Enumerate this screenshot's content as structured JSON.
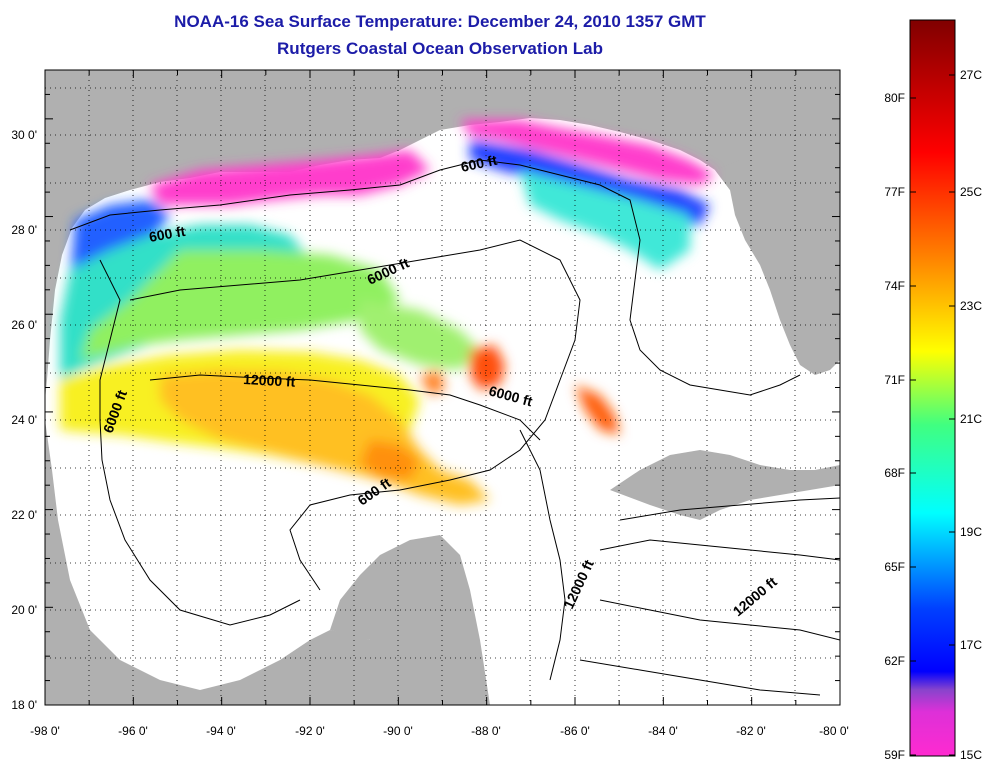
{
  "title": "NOAA-16 Sea Surface Temperature:  December 24, 2010 1357 GMT",
  "subtitle": "Rutgers Coastal Ocean Observation Lab",
  "map": {
    "lon_range": [
      -98,
      -80
    ],
    "lat_range": [
      18,
      31
    ],
    "lon_ticks": [
      "-98 0'",
      "-96 0'",
      "-94 0'",
      "-92 0'",
      "-90 0'",
      "-88 0'",
      "-86 0'",
      "-84 0'",
      "-82 0'",
      "-80 0'"
    ],
    "lat_ticks": [
      "18 0'",
      "20 0'",
      "22 0'",
      "24 0'",
      "26 0'",
      "28 0'",
      "30 0'"
    ],
    "land_color": "#b0b0b0",
    "no_data_color": "#ffffff",
    "grid": "dotted",
    "depth_labels": [
      {
        "text": "600 ft"
      },
      {
        "text": "600 ft"
      },
      {
        "text": "6000 ft"
      },
      {
        "text": "12000 ft"
      },
      {
        "text": "6000 ft"
      },
      {
        "text": "6000 ft"
      },
      {
        "text": "600 ft"
      },
      {
        "text": "12000 ft"
      },
      {
        "text": "12000 ft"
      }
    ]
  },
  "colorbar": {
    "fahrenheit": [
      "80F",
      "77F",
      "74F",
      "71F",
      "68F",
      "65F",
      "62F",
      "59F"
    ],
    "celsius": [
      "27C",
      "25C",
      "23C",
      "21C",
      "19C",
      "17C",
      "15C"
    ],
    "colors": [
      "#ff2ad0",
      "#8844cc",
      "#0000ff",
      "#00ffff",
      "#ffff00",
      "#ff8000",
      "#ff0000",
      "#800000"
    ]
  }
}
